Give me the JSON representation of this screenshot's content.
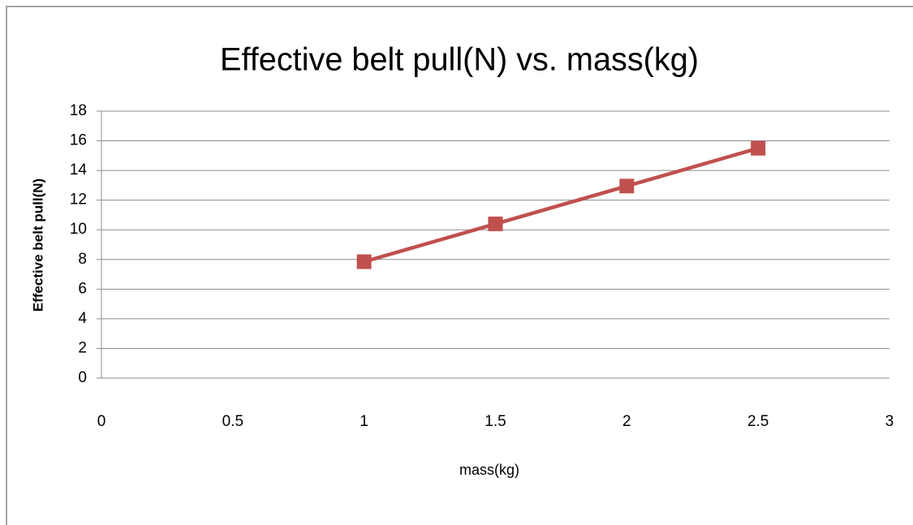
{
  "chart_data": {
    "type": "line",
    "title": "Effective belt pull(N) vs. mass(kg)",
    "x_label": "mass(kg)",
    "y_label": "Effective belt pull(N)",
    "x": [
      1,
      1.5,
      2,
      2.5
    ],
    "series": [
      {
        "name": "Effective belt pull(N)",
        "color": "#c0504d",
        "values": [
          7.85,
          10.4,
          12.95,
          15.5
        ]
      }
    ],
    "xlim": [
      0,
      3
    ],
    "xticks": [
      0,
      0.5,
      1,
      1.5,
      2,
      2.5,
      3
    ],
    "ylim": [
      0,
      18
    ],
    "yticks": [
      0,
      2,
      4,
      6,
      8,
      10,
      12,
      14,
      16,
      18
    ],
    "grid": true,
    "marker": "square"
  }
}
